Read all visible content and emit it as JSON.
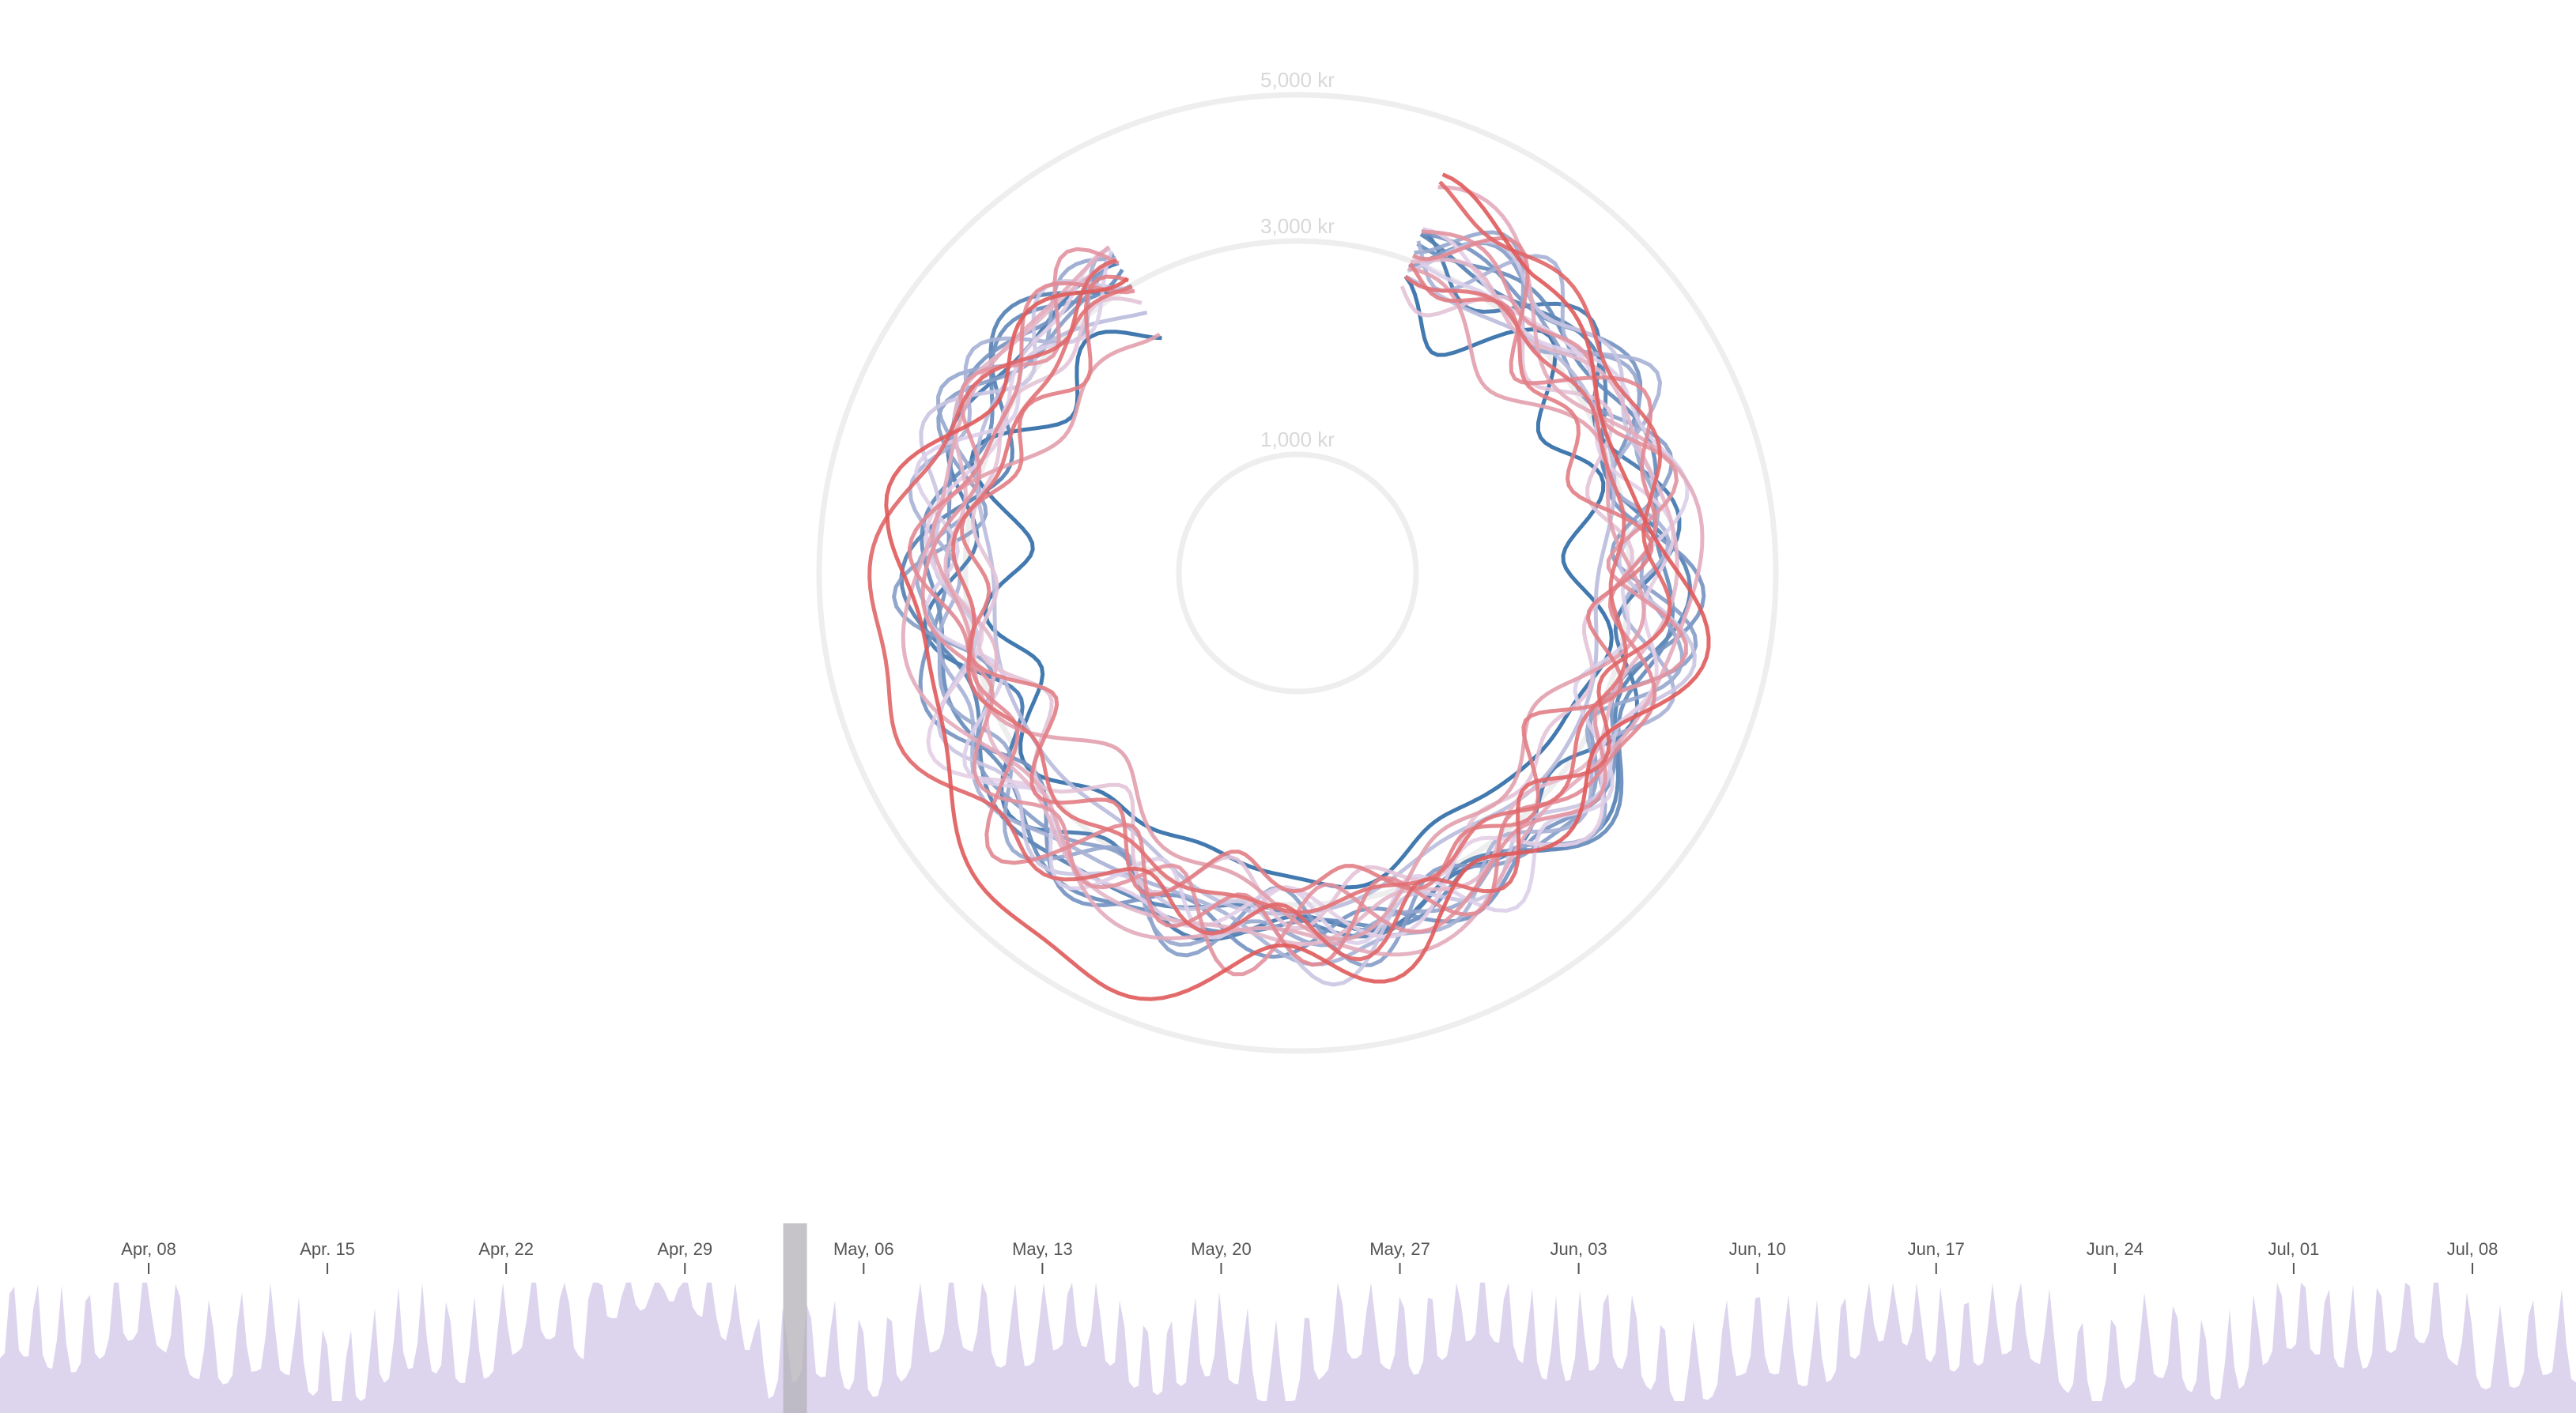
{
  "chart_data": {
    "type": "line",
    "subtype": "radial",
    "title": "",
    "radial_axis": {
      "rings": [
        {
          "value": 1000,
          "label": "1,000 kr"
        },
        {
          "value": 3000,
          "label": "3,000 kr"
        },
        {
          "value": 5000,
          "label": "5,000 kr"
        }
      ],
      "ring_color": "#eeeeee"
    },
    "color_scale": {
      "low": "#2e6aa6",
      "mid": "#e4d4ec",
      "high": "#e05a5a"
    },
    "series_count": 22,
    "timeline": {
      "type": "area",
      "fill": "#ddd5ee",
      "brush_color": "#b8b4bc",
      "brush_date": "May, 02",
      "x_ticks": [
        "Apr, 08",
        "Apr. 15",
        "Apr, 22",
        "Apr, 29",
        "May, 06",
        "May, 13",
        "May, 20",
        "May, 27",
        "Jun, 03",
        "Jun, 10",
        "Jun, 17",
        "Jun, 24",
        "Jul, 01",
        "Jul, 08"
      ]
    }
  }
}
